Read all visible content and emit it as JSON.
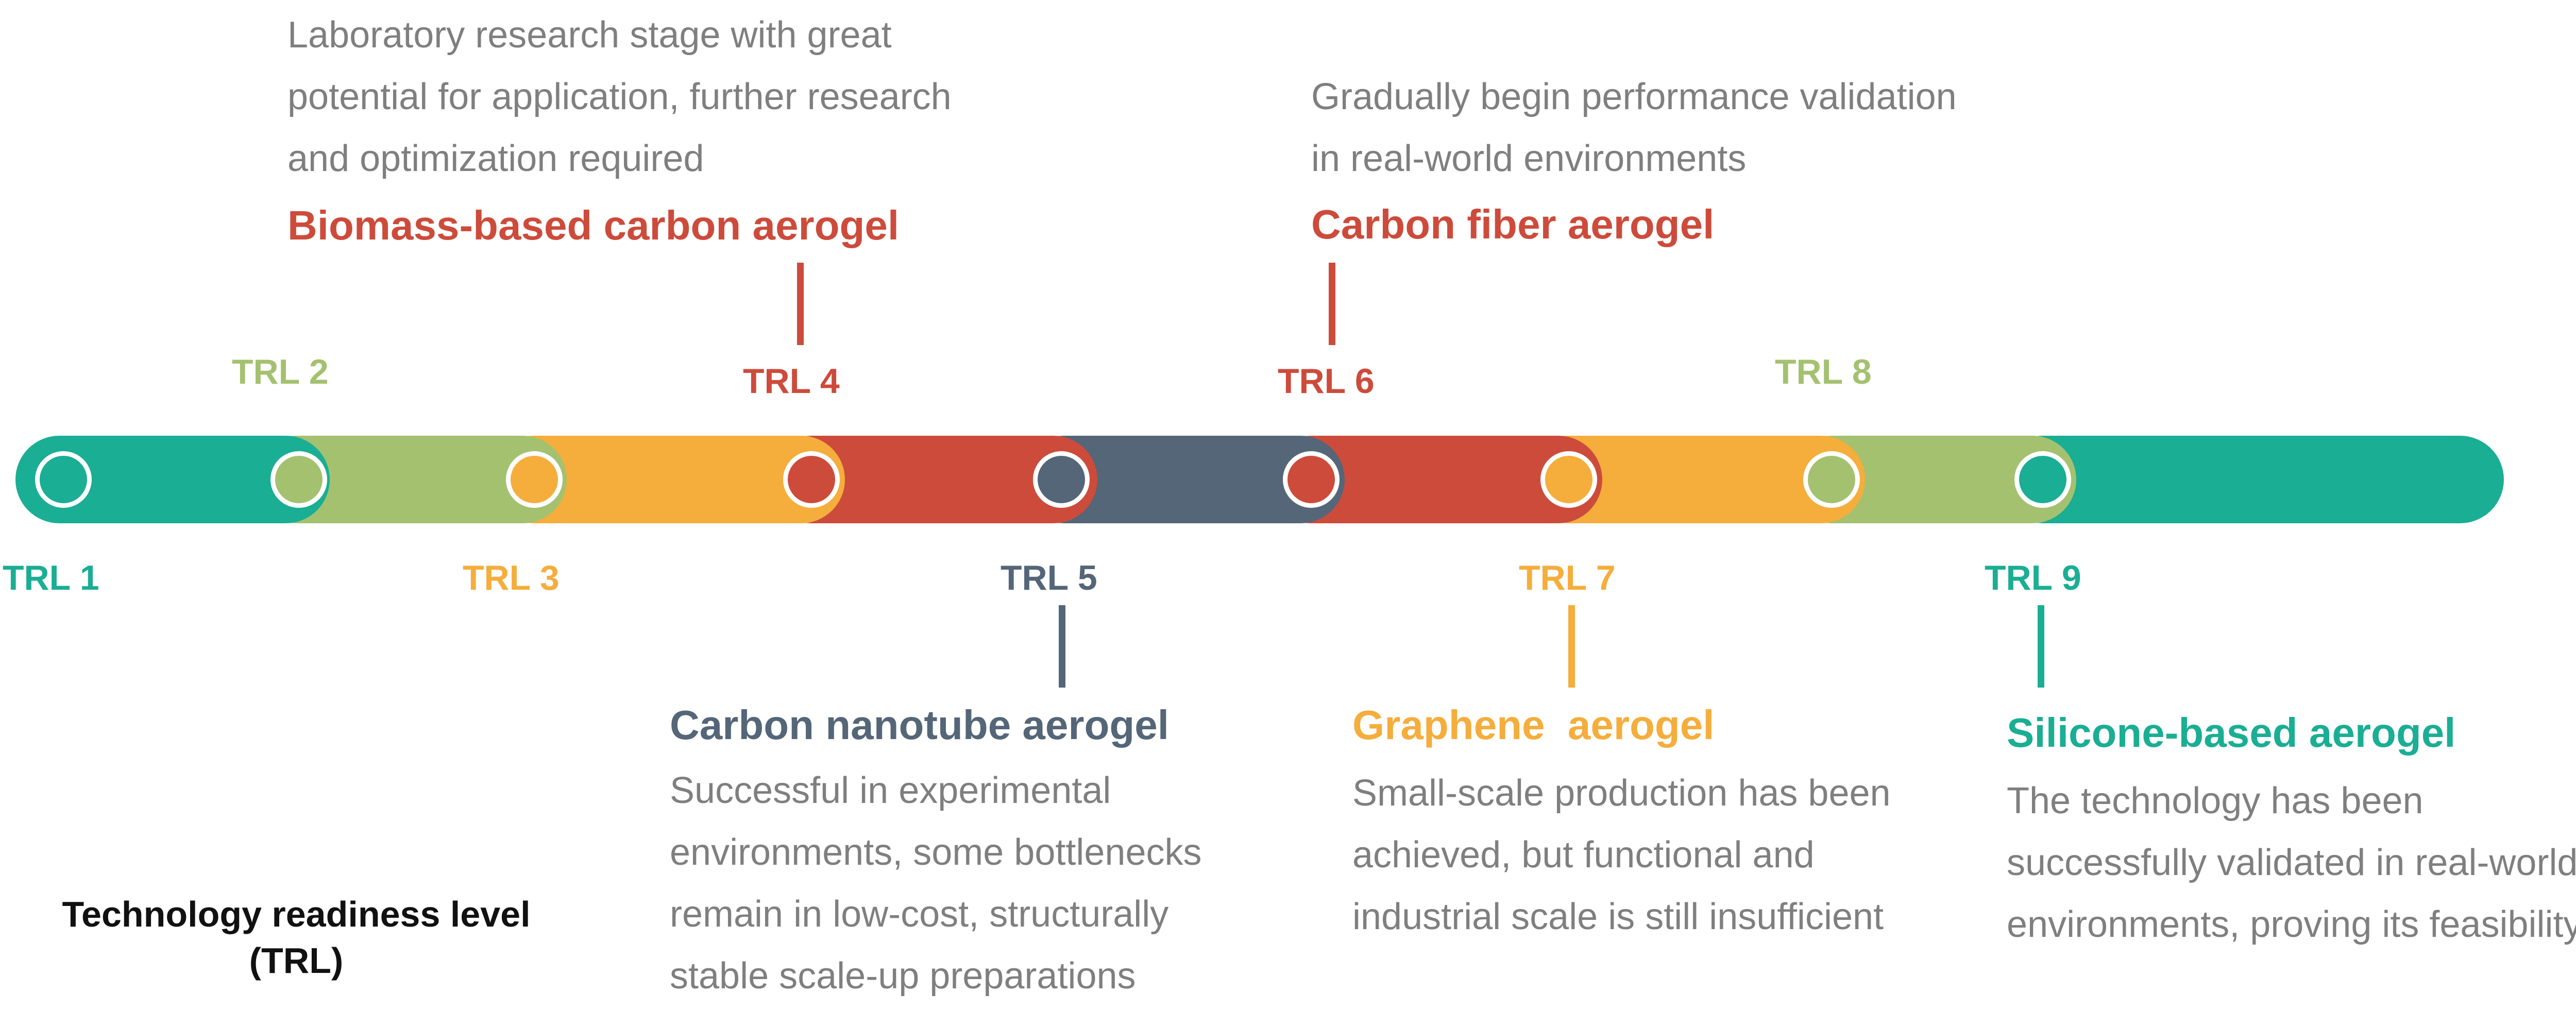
{
  "colors": {
    "teal": "#1aae94",
    "lime": "#a4c170",
    "orange": "#f5ad3b",
    "red": "#cd4b3b",
    "slate": "#546678",
    "gray": "#7f7f7f"
  },
  "levels": [
    {
      "label": "TRL 1",
      "color": "#1aae94"
    },
    {
      "label": "TRL 2",
      "color": "#a4c170"
    },
    {
      "label": "TRL 3",
      "color": "#f5ad3b"
    },
    {
      "label": "TRL 4",
      "color": "#cd4b3b"
    },
    {
      "label": "TRL 5",
      "color": "#546678"
    },
    {
      "label": "TRL 6",
      "color": "#cd4b3b"
    },
    {
      "label": "TRL 7",
      "color": "#f5ad3b"
    },
    {
      "label": "TRL 8",
      "color": "#a4c170"
    },
    {
      "label": "TRL 9",
      "color": "#1aae94"
    }
  ],
  "callouts": {
    "biomass": {
      "title": "Biomass-based carbon aerogel",
      "lines": [
        "Laboratory research stage with great",
        "potential for application, further research",
        "and optimization required"
      ]
    },
    "carbon_fiber": {
      "title": "Carbon fiber aerogel",
      "lines": [
        "Gradually begin performance validation",
        "in real-world environments"
      ]
    },
    "carbon_nanotube": {
      "title": "Carbon nanotube aerogel",
      "lines": [
        "Successful in experimental",
        "environments, some bottlenecks",
        "remain in low-cost, structurally",
        "stable scale-up preparations"
      ]
    },
    "graphene": {
      "title": "Graphene  aerogel",
      "lines": [
        "Small-scale production has been",
        "achieved, but functional and",
        "industrial scale is still insufficient"
      ]
    },
    "silicone": {
      "title": "Silicone-based aerogel",
      "lines": [
        "The technology has been",
        "successfully validated in real-world",
        "environments, proving its feasibility"
      ]
    }
  },
  "caption": {
    "line1": "Technology readiness level",
    "line2": "(TRL)"
  }
}
